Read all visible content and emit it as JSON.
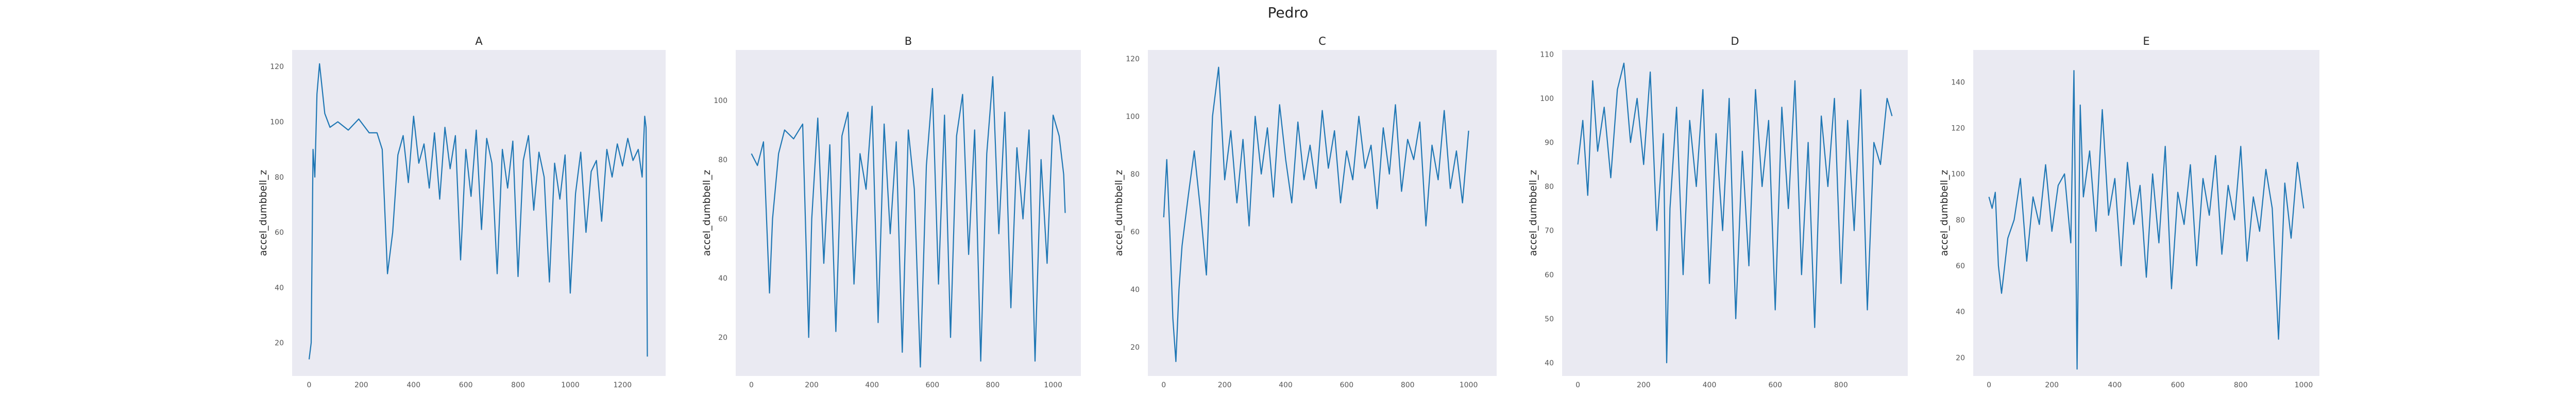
{
  "title": "Pedro",
  "colors": {
    "panel_background": "#eaeaf2",
    "line": "#1f77b4"
  },
  "chart_data": [
    {
      "type": "line",
      "title": "A",
      "xlabel": "",
      "ylabel": "accel_dumbbell_z",
      "xlim": [
        -65,
        1365
      ],
      "ylim": [
        8,
        126
      ],
      "xticks": [
        0,
        200,
        400,
        600,
        800,
        1000,
        1200
      ],
      "yticks": [
        20,
        40,
        60,
        80,
        100,
        120
      ],
      "grid": false,
      "series": [
        {
          "x": [
            0,
            8,
            15,
            22,
            30,
            40,
            60,
            80,
            110,
            150,
            190,
            230,
            260,
            280,
            300,
            320,
            340,
            360,
            380,
            400,
            420,
            440,
            460,
            480,
            500,
            520,
            540,
            560,
            580,
            600,
            620,
            640,
            660,
            680,
            700,
            720,
            740,
            760,
            780,
            800,
            820,
            840,
            860,
            880,
            900,
            920,
            940,
            960,
            980,
            1000,
            1020,
            1040,
            1060,
            1080,
            1100,
            1120,
            1140,
            1160,
            1180,
            1200,
            1220,
            1240,
            1260,
            1275,
            1285,
            1290,
            1295
          ],
          "y": [
            14,
            20,
            90,
            80,
            110,
            121,
            103,
            98,
            100,
            97,
            101,
            96,
            96,
            90,
            45,
            60,
            88,
            95,
            78,
            102,
            85,
            92,
            76,
            96,
            72,
            98,
            83,
            95,
            50,
            90,
            73,
            97,
            61,
            94,
            85,
            45,
            90,
            76,
            93,
            44,
            86,
            95,
            68,
            89,
            80,
            42,
            85,
            72,
            88,
            38,
            74,
            89,
            60,
            82,
            86,
            64,
            90,
            80,
            92,
            84,
            94,
            86,
            90,
            80,
            102,
            98,
            15
          ]
        }
      ]
    },
    {
      "type": "line",
      "title": "B",
      "xlabel": "",
      "ylabel": "accel_dumbbell_z",
      "xlim": [
        -52,
        1092
      ],
      "ylim": [
        7,
        117
      ],
      "xticks": [
        0,
        200,
        400,
        600,
        800,
        1000
      ],
      "yticks": [
        20,
        40,
        60,
        80,
        100
      ],
      "grid": false,
      "series": [
        {
          "x": [
            0,
            20,
            40,
            60,
            70,
            90,
            110,
            140,
            170,
            190,
            200,
            220,
            240,
            260,
            280,
            300,
            320,
            340,
            360,
            380,
            400,
            420,
            440,
            460,
            480,
            500,
            520,
            540,
            560,
            580,
            600,
            620,
            640,
            660,
            680,
            700,
            720,
            740,
            760,
            780,
            800,
            820,
            840,
            860,
            880,
            900,
            920,
            940,
            960,
            980,
            1000,
            1020,
            1035,
            1040
          ],
          "y": [
            82,
            78,
            86,
            35,
            60,
            82,
            90,
            87,
            92,
            20,
            60,
            94,
            45,
            85,
            22,
            88,
            96,
            38,
            82,
            70,
            98,
            25,
            92,
            55,
            86,
            15,
            90,
            70,
            10,
            78,
            104,
            38,
            95,
            20,
            88,
            102,
            48,
            90,
            12,
            82,
            108,
            55,
            96,
            30,
            84,
            60,
            90,
            12,
            80,
            45,
            95,
            88,
            75,
            62
          ]
        }
      ]
    },
    {
      "type": "line",
      "title": "C",
      "xlabel": "",
      "ylabel": "accel_dumbbell_z",
      "xlim": [
        -52,
        1092
      ],
      "ylim": [
        10,
        123
      ],
      "xticks": [
        0,
        200,
        400,
        600,
        800,
        1000
      ],
      "yticks": [
        20,
        40,
        60,
        80,
        100,
        120
      ],
      "grid": false,
      "series": [
        {
          "x": [
            0,
            10,
            20,
            30,
            40,
            50,
            60,
            80,
            100,
            120,
            140,
            160,
            180,
            200,
            220,
            240,
            260,
            280,
            300,
            320,
            340,
            360,
            380,
            400,
            420,
            440,
            460,
            480,
            500,
            520,
            540,
            560,
            580,
            600,
            620,
            640,
            660,
            680,
            700,
            720,
            740,
            760,
            780,
            800,
            820,
            840,
            860,
            880,
            900,
            920,
            940,
            960,
            980,
            1000
          ],
          "y": [
            65,
            85,
            60,
            30,
            15,
            40,
            55,
            72,
            88,
            68,
            45,
            100,
            117,
            78,
            95,
            70,
            92,
            62,
            100,
            80,
            96,
            72,
            104,
            85,
            70,
            98,
            78,
            90,
            75,
            102,
            82,
            95,
            70,
            88,
            78,
            100,
            82,
            90,
            68,
            96,
            80,
            104,
            74,
            92,
            85,
            98,
            62,
            90,
            78,
            102,
            75,
            88,
            70,
            95
          ]
        }
      ]
    },
    {
      "type": "line",
      "title": "D",
      "xlabel": "",
      "ylabel": "accel_dumbbell_z",
      "xlim": [
        -48,
        1003
      ],
      "ylim": [
        37,
        111
      ],
      "xticks": [
        0,
        200,
        400,
        600,
        800
      ],
      "yticks": [
        40,
        50,
        60,
        70,
        80,
        90,
        100,
        110
      ],
      "grid": false,
      "series": [
        {
          "x": [
            0,
            15,
            30,
            45,
            60,
            80,
            100,
            120,
            140,
            160,
            180,
            200,
            220,
            240,
            260,
            270,
            280,
            300,
            320,
            340,
            360,
            380,
            400,
            420,
            440,
            460,
            480,
            500,
            520,
            540,
            560,
            580,
            600,
            620,
            640,
            660,
            680,
            700,
            720,
            740,
            760,
            780,
            800,
            820,
            840,
            860,
            880,
            900,
            920,
            940,
            955
          ],
          "y": [
            85,
            95,
            78,
            104,
            88,
            98,
            82,
            102,
            108,
            90,
            100,
            85,
            106,
            70,
            92,
            40,
            75,
            98,
            60,
            95,
            80,
            102,
            58,
            92,
            70,
            100,
            50,
            88,
            62,
            102,
            80,
            95,
            52,
            98,
            75,
            104,
            60,
            90,
            48,
            96,
            80,
            100,
            58,
            95,
            70,
            102,
            52,
            90,
            85,
            100,
            96
          ]
        }
      ]
    },
    {
      "type": "line",
      "title": "E",
      "xlabel": "",
      "ylabel": "accel_dumbbell_z",
      "xlim": [
        -50,
        1050
      ],
      "ylim": [
        12,
        154
      ],
      "xticks": [
        0,
        200,
        400,
        600,
        800,
        1000
      ],
      "yticks": [
        20,
        40,
        60,
        80,
        100,
        120,
        140
      ],
      "grid": false,
      "series": [
        {
          "x": [
            0,
            10,
            20,
            30,
            40,
            60,
            80,
            100,
            120,
            140,
            160,
            180,
            200,
            220,
            240,
            260,
            270,
            280,
            290,
            300,
            320,
            340,
            360,
            380,
            400,
            420,
            440,
            460,
            480,
            500,
            520,
            540,
            560,
            580,
            600,
            620,
            640,
            660,
            680,
            700,
            720,
            740,
            760,
            780,
            800,
            820,
            840,
            860,
            880,
            900,
            920,
            940,
            960,
            980,
            1000
          ],
          "y": [
            90,
            85,
            92,
            60,
            48,
            72,
            80,
            98,
            62,
            90,
            78,
            104,
            75,
            95,
            100,
            70,
            145,
            15,
            130,
            90,
            110,
            75,
            128,
            82,
            98,
            60,
            105,
            78,
            95,
            55,
            100,
            70,
            112,
            50,
            92,
            78,
            104,
            60,
            98,
            82,
            108,
            65,
            95,
            80,
            112,
            62,
            90,
            75,
            102,
            85,
            28,
            96,
            72,
            105,
            85
          ]
        }
      ]
    }
  ]
}
